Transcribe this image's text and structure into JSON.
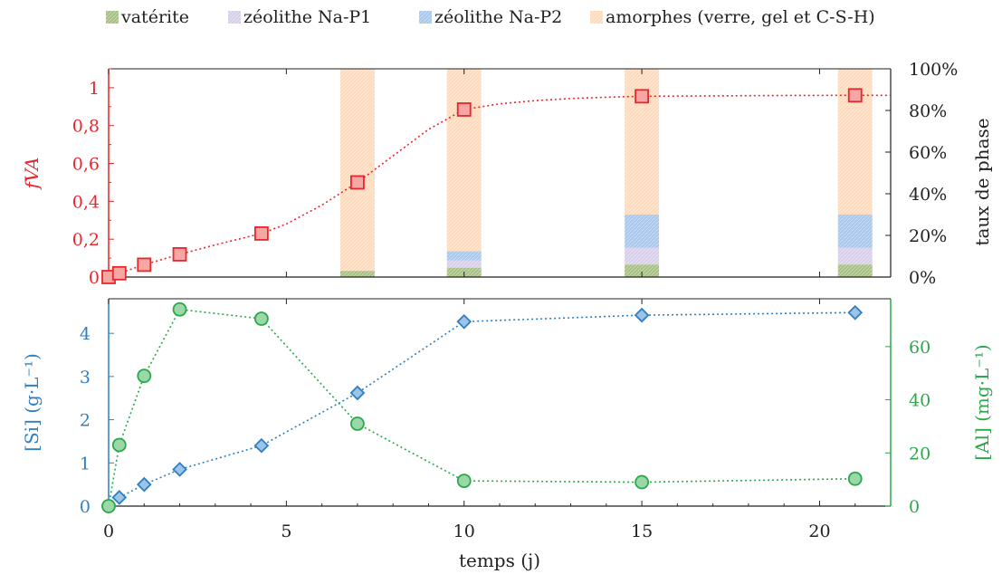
{
  "chart_data": [
    {
      "type": "line",
      "ylabel": "fVA",
      "ylim": [
        0,
        1.1
      ],
      "y_ticks": [
        "0",
        "0,2",
        "0,4",
        "0,6",
        "0,8",
        "1"
      ],
      "series": [
        {
          "name": "",
          "x": [
            0,
            0.3,
            1,
            2,
            4.3,
            7,
            10,
            15,
            21
          ],
          "y": [
            0,
            0.02,
            0.065,
            0.12,
            0.23,
            0.5,
            0.885,
            0.955,
            0.96
          ],
          "fit_x": [
            0,
            0.3,
            1,
            2,
            3,
            4.3,
            5,
            6,
            7,
            8,
            9,
            10,
            11,
            12,
            13,
            14,
            15,
            17,
            19,
            21,
            22
          ],
          "fit_y": [
            0,
            0.02,
            0.065,
            0.12,
            0.17,
            0.23,
            0.28,
            0.38,
            0.5,
            0.64,
            0.78,
            0.885,
            0.915,
            0.932,
            0.943,
            0.95,
            0.955,
            0.957,
            0.959,
            0.96,
            0.96
          ],
          "color": "#e8262b"
        }
      ],
      "secondary_y": {
        "label": "taux de phase",
        "ylim": [
          0,
          100
        ],
        "ticks": [
          "0%",
          "20%",
          "40%",
          "60%",
          "80%",
          "100%"
        ]
      },
      "stacked_bars": {
        "x": [
          7,
          10,
          15,
          21
        ],
        "legend": [
          "vatérite",
          "zéolithe Na-P1",
          "zéolithe Na-P2",
          "amorphes (verre, gel et C-S-H)"
        ],
        "colors": [
          "#8aab5d",
          "#c9bfe0",
          "#8eb4e3",
          "#fbcfa9"
        ],
        "values": [
          [
            3,
            0,
            0,
            97
          ],
          [
            4.5,
            3.5,
            4.5,
            87.5
          ],
          [
            6,
            8,
            16,
            70
          ],
          [
            6,
            8,
            16,
            70
          ]
        ]
      }
    },
    {
      "type": "line",
      "xlabel": "temps (j)",
      "xlim": [
        0,
        22
      ],
      "x_ticks": [
        "0",
        "5",
        "10",
        "15",
        "20"
      ],
      "ylabel": "[Si] (g·L⁻¹)",
      "ylim": [
        0,
        4.8
      ],
      "y_ticks": [
        "0",
        "1",
        "2",
        "3",
        "4"
      ],
      "series": [
        {
          "name": "",
          "x": [
            0,
            0.3,
            1,
            2,
            4.3,
            7,
            10,
            15,
            21
          ],
          "y": [
            0,
            0.2,
            0.5,
            0.85,
            1.4,
            2.62,
            4.27,
            4.42,
            4.48
          ],
          "color": "#2f7fc1"
        },
        {
          "name": "",
          "axis": "right",
          "x": [
            0,
            0.3,
            1,
            2,
            4.3,
            7,
            10,
            15,
            21
          ],
          "y": [
            0,
            23,
            49,
            74,
            70.5,
            31,
            9.5,
            9,
            10.3
          ],
          "color": "#2aa84a"
        }
      ],
      "secondary_y": {
        "label": "[Al] (mg·L⁻¹)",
        "ylim": [
          0,
          78
        ],
        "ticks": [
          "0",
          "20",
          "40",
          "60"
        ]
      }
    }
  ],
  "legend": {
    "items": [
      {
        "label": "vatérite",
        "color": "#8aab5d"
      },
      {
        "label": "zéolithe Na-P1",
        "color": "#c9bfe0"
      },
      {
        "label": "zéolithe Na-P2",
        "color": "#8eb4e3"
      },
      {
        "label": "amorphes (verre, gel et C-S-H)",
        "color": "#fbcfa9"
      }
    ]
  },
  "colors": {
    "fva": "#e8262b",
    "si": "#2f7fc1",
    "al": "#2aa84a",
    "axis": "#222222"
  }
}
